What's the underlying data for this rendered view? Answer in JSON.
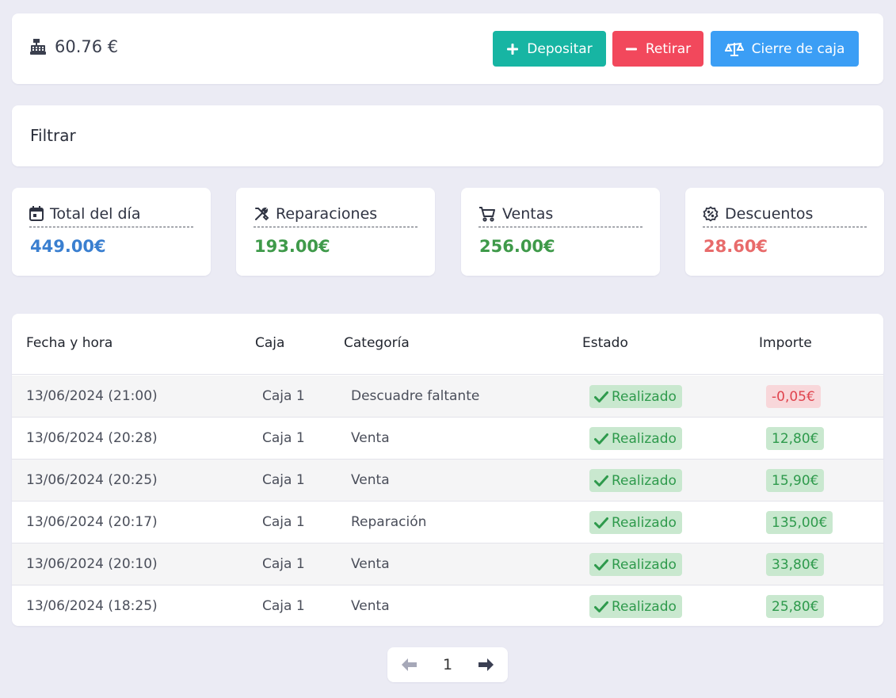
{
  "header": {
    "balance": "60.76 €",
    "deposit_label": "Depositar",
    "withdraw_label": "Retirar",
    "close_label": "Cierre de caja"
  },
  "filter": {
    "title": "Filtrar"
  },
  "stats": [
    {
      "label": "Total del día",
      "value": "449.00€",
      "color": "#3a7fd0",
      "icon": "calendar-icon"
    },
    {
      "label": "Reparaciones",
      "value": "193.00€",
      "color": "#3f9a4a",
      "icon": "tools-icon"
    },
    {
      "label": "Ventas",
      "value": "256.00€",
      "color": "#3f9a4a",
      "icon": "cart-icon"
    },
    {
      "label": "Descuentos",
      "value": "28.60€",
      "color": "#e86b6b",
      "icon": "discount-icon"
    }
  ],
  "table": {
    "headers": [
      "Fecha y hora",
      "Caja",
      "Categoría",
      "Estado",
      "Importe"
    ],
    "rows": [
      {
        "datetime": "13/06/2024 (21:00)",
        "caja": "Caja 1",
        "category": "Descuadre faltante",
        "status": "Realizado",
        "amount": "-0,05€",
        "amount_type": "neg"
      },
      {
        "datetime": "13/06/2024 (20:28)",
        "caja": "Caja 1",
        "category": "Venta",
        "status": "Realizado",
        "amount": "12,80€",
        "amount_type": "pos"
      },
      {
        "datetime": "13/06/2024 (20:25)",
        "caja": "Caja 1",
        "category": "Venta",
        "status": "Realizado",
        "amount": "15,90€",
        "amount_type": "pos"
      },
      {
        "datetime": "13/06/2024 (20:17)",
        "caja": "Caja 1",
        "category": "Reparación",
        "status": "Realizado",
        "amount": "135,00€",
        "amount_type": "pos"
      },
      {
        "datetime": "13/06/2024 (20:10)",
        "caja": "Caja 1",
        "category": "Venta",
        "status": "Realizado",
        "amount": "33,80€",
        "amount_type": "pos"
      },
      {
        "datetime": "13/06/2024 (18:25)",
        "caja": "Caja 1",
        "category": "Venta",
        "status": "Realizado",
        "amount": "25,80€",
        "amount_type": "pos"
      }
    ]
  },
  "pagination": {
    "current_page": "1"
  },
  "colors": {
    "deposit": "#17b5a3",
    "withdraw": "#f2485c",
    "close": "#3b9ef5"
  }
}
